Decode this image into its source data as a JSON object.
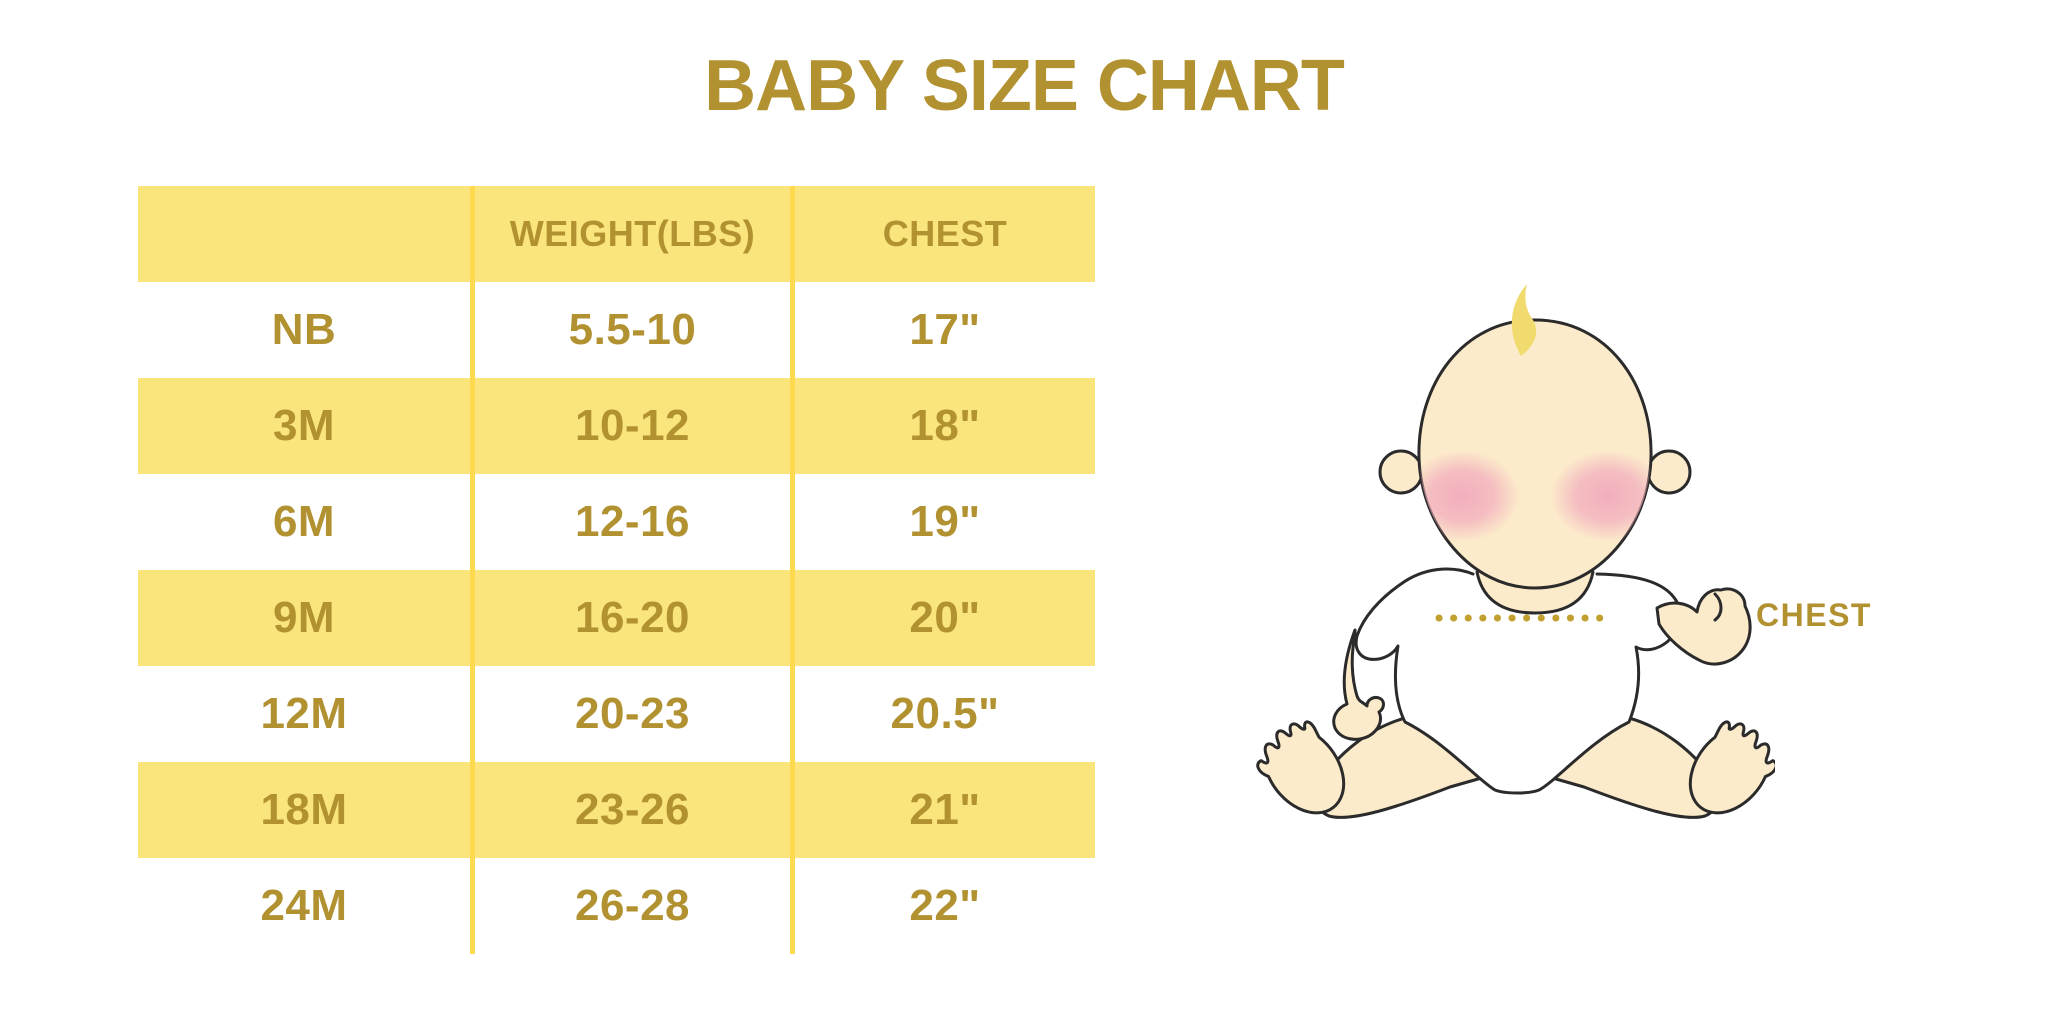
{
  "title": "BABY SIZE CHART",
  "chart_data": {
    "type": "table",
    "title": "BABY SIZE CHART",
    "columns": [
      "",
      "WEIGHT(LBS)",
      "CHEST"
    ],
    "rows": [
      [
        "NB",
        "5.5-10",
        "17\""
      ],
      [
        "3M",
        "10-12",
        "18\""
      ],
      [
        "6M",
        "12-16",
        "19\""
      ],
      [
        "9M",
        "16-20",
        "20\""
      ],
      [
        "12M",
        "20-23",
        "20.5\""
      ],
      [
        "18M",
        "23-26",
        "21\""
      ],
      [
        "24M",
        "26-28",
        "22\""
      ]
    ],
    "layout": {
      "striping": "header and alternate rows yellow, others white",
      "grid": "vertical yellow dividers between columns only"
    }
  },
  "illustration": {
    "chest_label": "CHEST",
    "description": "sitting baby in white onesie with dotted chest measurement line"
  },
  "colors": {
    "gold_text": "#B19130",
    "row_yellow": "#FAE47C",
    "column_divider": "#FFD94E",
    "dotted_line": "#C2A02F",
    "skin": "#FCEBCB",
    "blush": "#F2AEBD",
    "hair": "#F2DB6E",
    "outline": "#2B2B2B",
    "background": "#FFFFFF"
  }
}
